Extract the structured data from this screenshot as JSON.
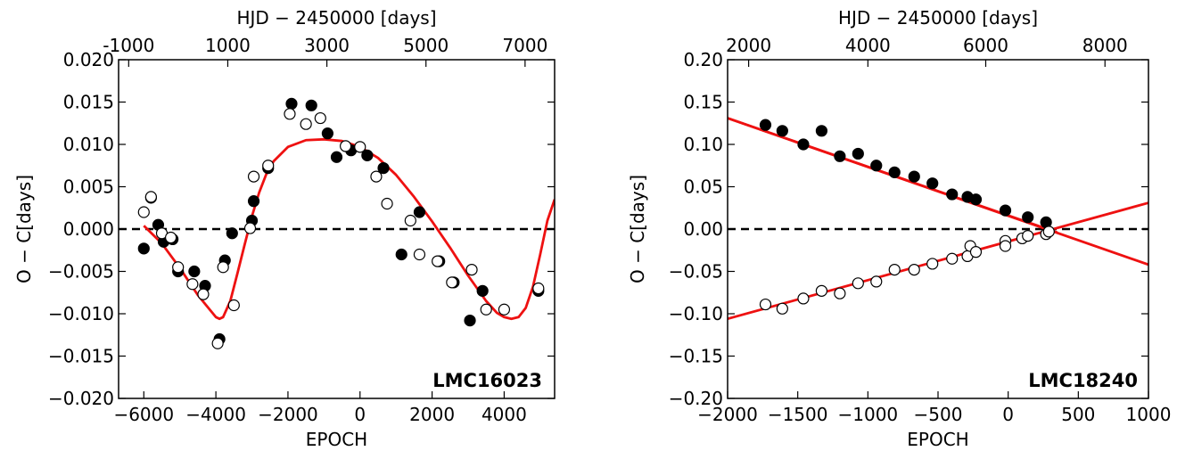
{
  "chart_data": [
    {
      "type": "scatter",
      "panel_label": "LMC16023",
      "xlabel": "EPOCH",
      "ylabel": "O − C[days]",
      "top_xlabel": "HJD − 2450000 [days]",
      "xlim": [
        -6700,
        5400
      ],
      "ylim": [
        -0.02,
        0.02
      ],
      "xticks": [
        -6000,
        -4000,
        -2000,
        0,
        2000,
        4000
      ],
      "xtick_labels": [
        "−6000",
        "−4000",
        "−2000",
        "0",
        "2000",
        "4000"
      ],
      "yticks": [
        -0.02,
        -0.015,
        -0.01,
        -0.005,
        0.0,
        0.005,
        0.01,
        0.015,
        0.02
      ],
      "ytick_labels": [
        "−0.020",
        "−0.015",
        "−0.010",
        "−0.005",
        "0.000",
        "0.005",
        "0.010",
        "0.015",
        "0.020"
      ],
      "top_axis_ticks": {
        "epoch": [
          -6420,
          -3670,
          -920,
          1830,
          4580
        ],
        "labels": [
          "-1000",
          "1000",
          "3000",
          "5000",
          "7000"
        ]
      },
      "series": [
        {
          "style": "filled",
          "x": [
            -6000,
            -5800,
            -5600,
            -5450,
            -5200,
            -5050,
            -4600,
            -4300,
            -3900,
            -3750,
            -3550,
            -3000,
            -2950,
            -2550,
            -1900,
            -1350,
            -900,
            -650,
            -250,
            200,
            650,
            1150,
            1650,
            2200,
            2600,
            3050,
            3400,
            4950
          ],
          "y": [
            -0.0023,
            0.0037,
            0.0005,
            -0.0015,
            -0.0012,
            -0.005,
            -0.005,
            -0.0067,
            -0.013,
            -0.0037,
            -0.0005,
            0.001,
            0.0033,
            0.0072,
            0.0148,
            0.0146,
            0.0113,
            0.0085,
            0.0093,
            0.0087,
            0.0072,
            -0.003,
            0.002,
            -0.0038,
            -0.0063,
            -0.0108,
            -0.0073,
            -0.0073
          ]
        },
        {
          "style": "open",
          "x": [
            -6000,
            -5800,
            -5500,
            -5250,
            -5050,
            -4650,
            -4350,
            -3950,
            -3800,
            -3500,
            -3050,
            -2950,
            -2550,
            -1950,
            -1500,
            -1100,
            -400,
            0,
            450,
            750,
            1400,
            1650,
            2150,
            2550,
            3100,
            3500,
            4000,
            4950
          ],
          "y": [
            0.002,
            0.0038,
            -0.0005,
            -0.001,
            -0.0045,
            -0.0065,
            -0.0077,
            -0.0135,
            -0.0045,
            -0.009,
            0.0001,
            0.0062,
            0.0075,
            0.0136,
            0.0124,
            0.0131,
            0.0098,
            0.0097,
            0.0062,
            0.003,
            0.001,
            -0.003,
            -0.0038,
            -0.0063,
            -0.0048,
            -0.0095,
            -0.0095,
            -0.007
          ]
        }
      ],
      "fit_curve": {
        "x": [
          -6000,
          -5500,
          -5000,
          -4500,
          -4000,
          -3900,
          -3800,
          -3600,
          -3400,
          -3200,
          -3000,
          -2800,
          -2600,
          -2400,
          -2000,
          -1500,
          -1000,
          -500,
          0,
          500,
          1000,
          1500,
          2000,
          2500,
          3000,
          3500,
          3800,
          4000,
          4200,
          4400,
          4600,
          4800,
          5000,
          5200,
          5400
        ],
        "y": [
          0.0004,
          -0.0017,
          -0.0046,
          -0.0078,
          -0.0104,
          -0.0106,
          -0.0104,
          -0.0085,
          -0.0052,
          -0.0018,
          0.0015,
          0.0043,
          0.0065,
          0.008,
          0.0097,
          0.0105,
          0.0106,
          0.0104,
          0.0097,
          0.0084,
          0.0064,
          0.0038,
          0.0009,
          -0.0022,
          -0.0055,
          -0.0085,
          -0.0099,
          -0.0104,
          -0.0106,
          -0.0104,
          -0.0093,
          -0.0068,
          -0.003,
          0.001,
          0.0035
        ]
      },
      "reference_line_y": 0.0
    },
    {
      "type": "scatter",
      "panel_label": "LMC18240",
      "xlabel": "EPOCH",
      "ylabel": "O − C[days]",
      "top_xlabel": "HJD − 2450000 [days]",
      "xlim": [
        -2000,
        1000
      ],
      "ylim": [
        -0.2,
        0.2
      ],
      "xticks": [
        -2000,
        -1500,
        -1000,
        -500,
        0,
        500,
        1000
      ],
      "xtick_labels": [
        "−2000",
        "−1500",
        "−1000",
        "−500",
        "0",
        "500",
        "1000"
      ],
      "yticks": [
        -0.2,
        -0.15,
        -0.1,
        -0.05,
        0.0,
        0.05,
        0.1,
        0.15,
        0.2
      ],
      "ytick_labels": [
        "−0.20",
        "−0.15",
        "−0.10",
        "−0.05",
        "0.00",
        "0.05",
        "0.10",
        "0.15",
        "0.20"
      ],
      "top_axis_ticks": {
        "epoch": [
          -1850,
          -1000,
          -160,
          690
        ],
        "labels": [
          "2000",
          "4000",
          "6000",
          "8000"
        ]
      },
      "series": [
        {
          "style": "filled",
          "x": [
            -1730,
            -1610,
            -1460,
            -1330,
            -1200,
            -1070,
            -940,
            -810,
            -670,
            -540,
            -400,
            -290,
            -230,
            -20,
            140,
            270
          ],
          "y": [
            0.123,
            0.116,
            0.1,
            0.116,
            0.086,
            0.089,
            0.075,
            0.067,
            0.062,
            0.054,
            0.041,
            0.038,
            0.035,
            0.022,
            0.014,
            0.008
          ]
        },
        {
          "style": "open",
          "x": [
            -1730,
            -1610,
            -1460,
            -1330,
            -1200,
            -1070,
            -940,
            -810,
            -670,
            -540,
            -400,
            -290,
            -270,
            -230,
            -20,
            -20,
            100,
            140,
            270,
            290
          ],
          "y": [
            -0.089,
            -0.094,
            -0.082,
            -0.073,
            -0.076,
            -0.064,
            -0.062,
            -0.048,
            -0.048,
            -0.041,
            -0.035,
            -0.032,
            -0.02,
            -0.027,
            -0.014,
            -0.02,
            -0.011,
            -0.008,
            -0.006,
            -0.003
          ]
        }
      ],
      "fit_lines": [
        {
          "x": [
            -2000,
            350
          ],
          "y": [
            0.131,
            -0.004
          ]
        },
        {
          "x": [
            -2000,
            1000
          ],
          "y": [
            -0.106,
            -0.042
          ]
        },
        {
          "x": [
            -2000,
            1000
          ],
          "y": [
            -0.106,
            0.031
          ]
        }
      ],
      "fit_line_note": "",
      "reference_line_y": 0.0
    }
  ]
}
